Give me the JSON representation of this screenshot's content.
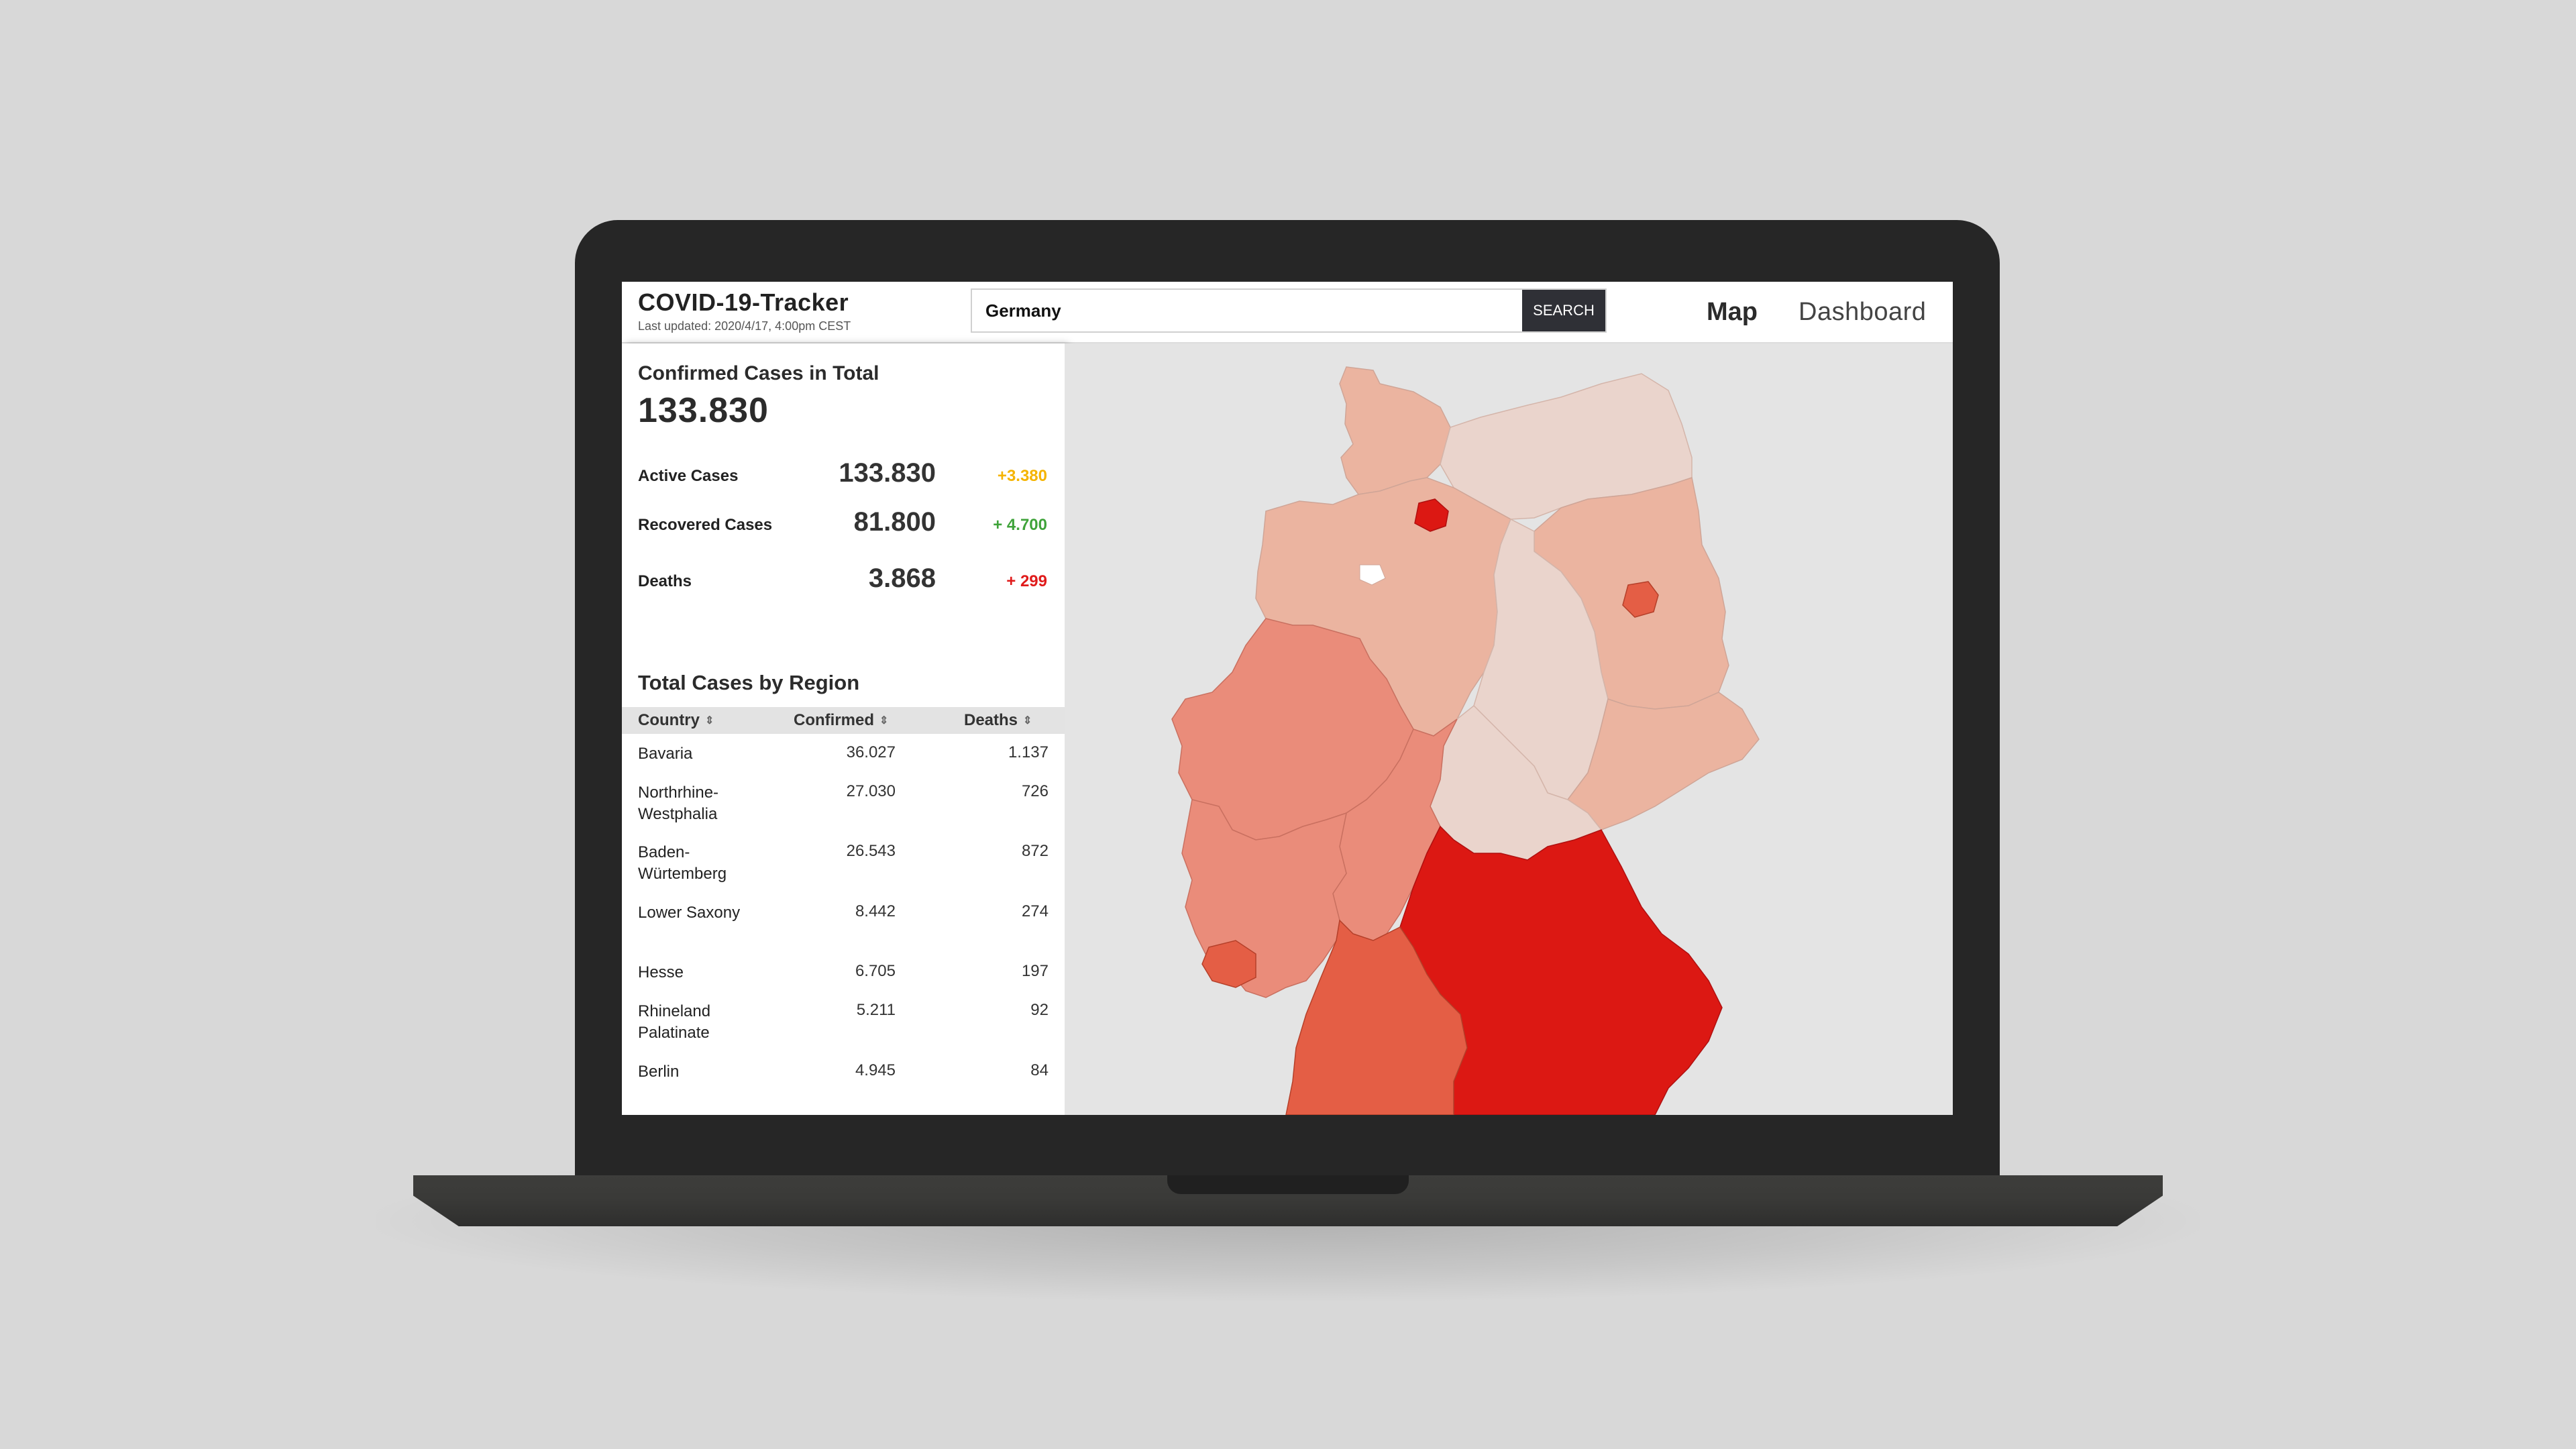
{
  "header": {
    "title": "COVID-19-Tracker",
    "last_updated": "Last updated: 2020/4/17, 4:00pm CEST",
    "search_value": "Germany",
    "search_button": "SEARCH",
    "nav": {
      "map": "Map",
      "dashboard": "Dashboard"
    }
  },
  "summary": {
    "title": "Confirmed Cases in Total",
    "total": "133.830",
    "stats": [
      {
        "label": "Active Cases",
        "value": "133.830",
        "delta": "+3.380",
        "color": "#f5b400"
      },
      {
        "label": "Recovered Cases",
        "value": "81.800",
        "delta": "+ 4.700",
        "color": "#3fa33a"
      },
      {
        "label": "Deaths",
        "value": "3.868",
        "delta": "+ 299",
        "color": "#e01b1b"
      }
    ]
  },
  "regions": {
    "title": "Total Cases by Region",
    "columns": [
      "Country",
      "Confirmed",
      "Deaths"
    ],
    "rows": [
      {
        "region": "Bavaria",
        "confirmed": "36.027",
        "deaths": "1.137"
      },
      {
        "region": "Northrhine-Westphalia",
        "confirmed": "27.030",
        "deaths": "726"
      },
      {
        "region": "Baden-Würtemberg",
        "confirmed": "26.543",
        "deaths": "872"
      },
      {
        "region": "Lower Saxony",
        "confirmed": "8.442",
        "deaths": "274"
      },
      {
        "region": "Hesse",
        "confirmed": "6.705",
        "deaths": "197"
      },
      {
        "region": "Rhineland Palatinate",
        "confirmed": "5.211",
        "deaths": "92"
      },
      {
        "region": "Berlin",
        "confirmed": "4.945",
        "deaths": "84"
      }
    ]
  },
  "map": {
    "colors": {
      "highest": "#dc1813",
      "high": "#e45e45",
      "medium": "#ea8c7a",
      "low": "#ebb4a0",
      "lowest": "#ead4cc",
      "background": "#e4e4e4"
    }
  }
}
